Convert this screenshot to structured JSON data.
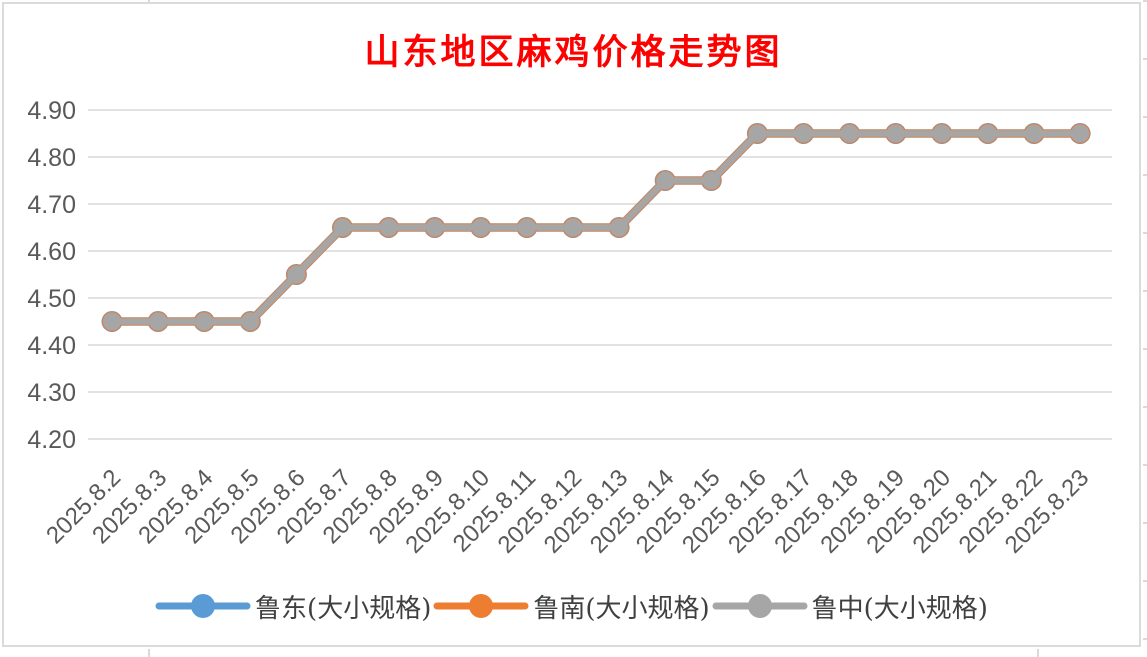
{
  "chart": {
    "title": "山东地区麻鸡价格走势图",
    "title_color": "#FF0000"
  },
  "chart_data": {
    "type": "line",
    "title": "山东地区麻鸡价格走势图",
    "categories": [
      "2025.8.2",
      "2025.8.3",
      "2025.8.4",
      "2025.8.5",
      "2025.8.6",
      "2025.8.7",
      "2025.8.8",
      "2025.8.9",
      "2025.8.10",
      "2025.8.11",
      "2025.8.12",
      "2025.8.13",
      "2025.8.14",
      "2025.8.15",
      "2025.8.16",
      "2025.8.17",
      "2025.8.18",
      "2025.8.19",
      "2025.8.20",
      "2025.8.21",
      "2025.8.22",
      "2025.8.23"
    ],
    "series": [
      {
        "name": "鲁东(大小规格)",
        "color": "#5B9BD5",
        "values": [
          4.45,
          4.45,
          4.45,
          4.45,
          4.55,
          4.65,
          4.65,
          4.65,
          4.65,
          4.65,
          4.65,
          4.65,
          4.75,
          4.75,
          4.85,
          4.85,
          4.85,
          4.85,
          4.85,
          4.85,
          4.85,
          4.85
        ]
      },
      {
        "name": "鲁南(大小规格)",
        "color": "#ED7D31",
        "values": [
          4.45,
          4.45,
          4.45,
          4.45,
          4.55,
          4.65,
          4.65,
          4.65,
          4.65,
          4.65,
          4.65,
          4.65,
          4.75,
          4.75,
          4.85,
          4.85,
          4.85,
          4.85,
          4.85,
          4.85,
          4.85,
          4.85
        ]
      },
      {
        "name": "鲁中(大小规格)",
        "color": "#A6A6A6",
        "values": [
          4.45,
          4.45,
          4.45,
          4.45,
          4.55,
          4.65,
          4.65,
          4.65,
          4.65,
          4.65,
          4.65,
          4.65,
          4.75,
          4.75,
          4.85,
          4.85,
          4.85,
          4.85,
          4.85,
          4.85,
          4.85,
          4.85
        ]
      }
    ],
    "ylim": [
      4.2,
      4.9
    ],
    "ytick_labels": [
      "4.90",
      "4.80",
      "4.70",
      "4.60",
      "4.50",
      "4.40",
      "4.30",
      "4.20"
    ],
    "grid": true,
    "legend_position": "bottom",
    "axis_text_color": "#595959",
    "gridline_color": "#E2E2E2"
  }
}
